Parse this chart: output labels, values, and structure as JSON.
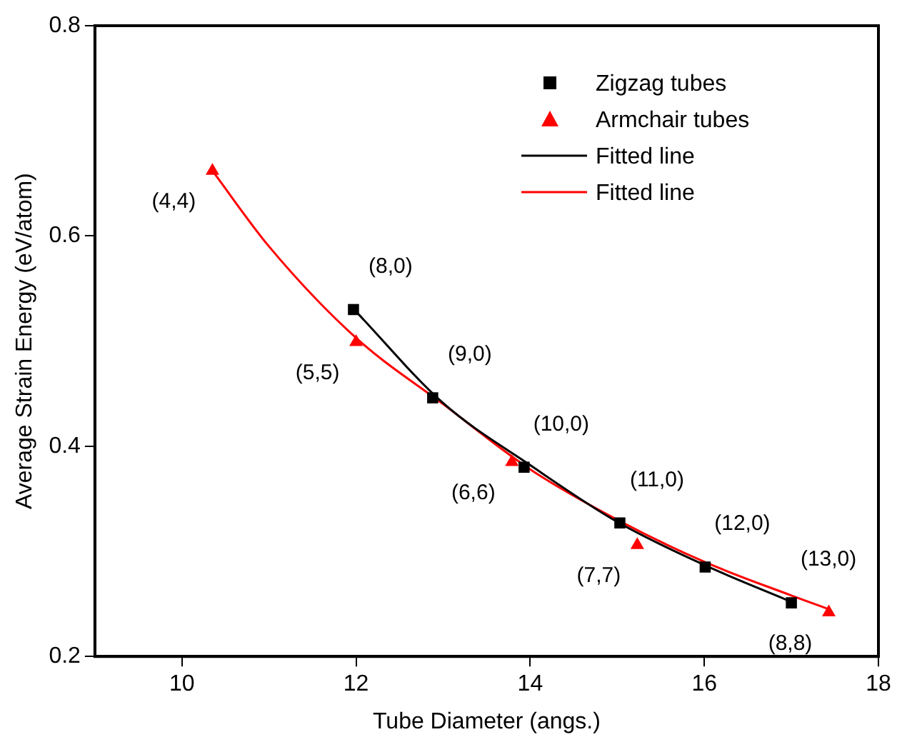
{
  "chart_data": {
    "type": "scatter",
    "xlabel": "Tube Diameter (angs.)",
    "ylabel": "Average Strain Energy (eV/atom)",
    "xlim": [
      9,
      18
    ],
    "xticks": [
      10,
      12,
      14,
      16,
      18
    ],
    "ylim": [
      0.2,
      0.8
    ],
    "yticks": [
      0.2,
      0.4,
      0.6,
      0.8
    ],
    "grid": false,
    "legend": "top right",
    "series": [
      {
        "name": "Zigzag tubes",
        "marker": "square",
        "color": "#000000",
        "x": [
          11.97,
          12.88,
          13.93,
          15.03,
          16.01,
          17.0
        ],
        "values": [
          0.53,
          0.446,
          0.38,
          0.327,
          0.285,
          0.251
        ]
      },
      {
        "name": "Armchair tubes",
        "marker": "triangle",
        "color": "#ff0000",
        "x": [
          10.35,
          12.0,
          13.79,
          15.23,
          17.43
        ],
        "values": [
          0.662,
          0.499,
          0.385,
          0.306,
          0.242
        ]
      },
      {
        "name": "Fitted line",
        "type": "line",
        "marker": "none",
        "line_style": "solid",
        "color": "#000000",
        "x": [
          12.0,
          13.0,
          14.0,
          15.0,
          16.0,
          17.0
        ],
        "values": [
          0.528,
          0.441,
          0.382,
          0.328,
          0.287,
          0.252
        ]
      },
      {
        "name": "Fitted line",
        "type": "line",
        "marker": "none",
        "line_style": "solid",
        "color": "#ff0000",
        "x": [
          10.35,
          11.0,
          12.0,
          13.0,
          14.0,
          15.0,
          16.0,
          17.0,
          17.43
        ],
        "values": [
          0.662,
          0.59,
          0.503,
          0.44,
          0.378,
          0.33,
          0.29,
          0.258,
          0.245
        ]
      }
    ],
    "annotations": [
      {
        "text": "(4,4)",
        "x": 10.35,
        "y": 0.662
      },
      {
        "text": "(8,0)",
        "x": 11.97,
        "y": 0.53
      },
      {
        "text": "(5,5)",
        "x": 12.0,
        "y": 0.499
      },
      {
        "text": "(9,0)",
        "x": 12.88,
        "y": 0.446
      },
      {
        "text": "(10,0)",
        "x": 13.93,
        "y": 0.38
      },
      {
        "text": "(6,6)",
        "x": 13.79,
        "y": 0.385
      },
      {
        "text": "(11,0)",
        "x": 15.03,
        "y": 0.327
      },
      {
        "text": "(7,7)",
        "x": 15.23,
        "y": 0.306
      },
      {
        "text": "(12,0)",
        "x": 16.01,
        "y": 0.285
      },
      {
        "text": "(13,0)",
        "x": 17.0,
        "y": 0.251
      },
      {
        "text": "(8,8)",
        "x": 17.43,
        "y": 0.242
      }
    ]
  }
}
